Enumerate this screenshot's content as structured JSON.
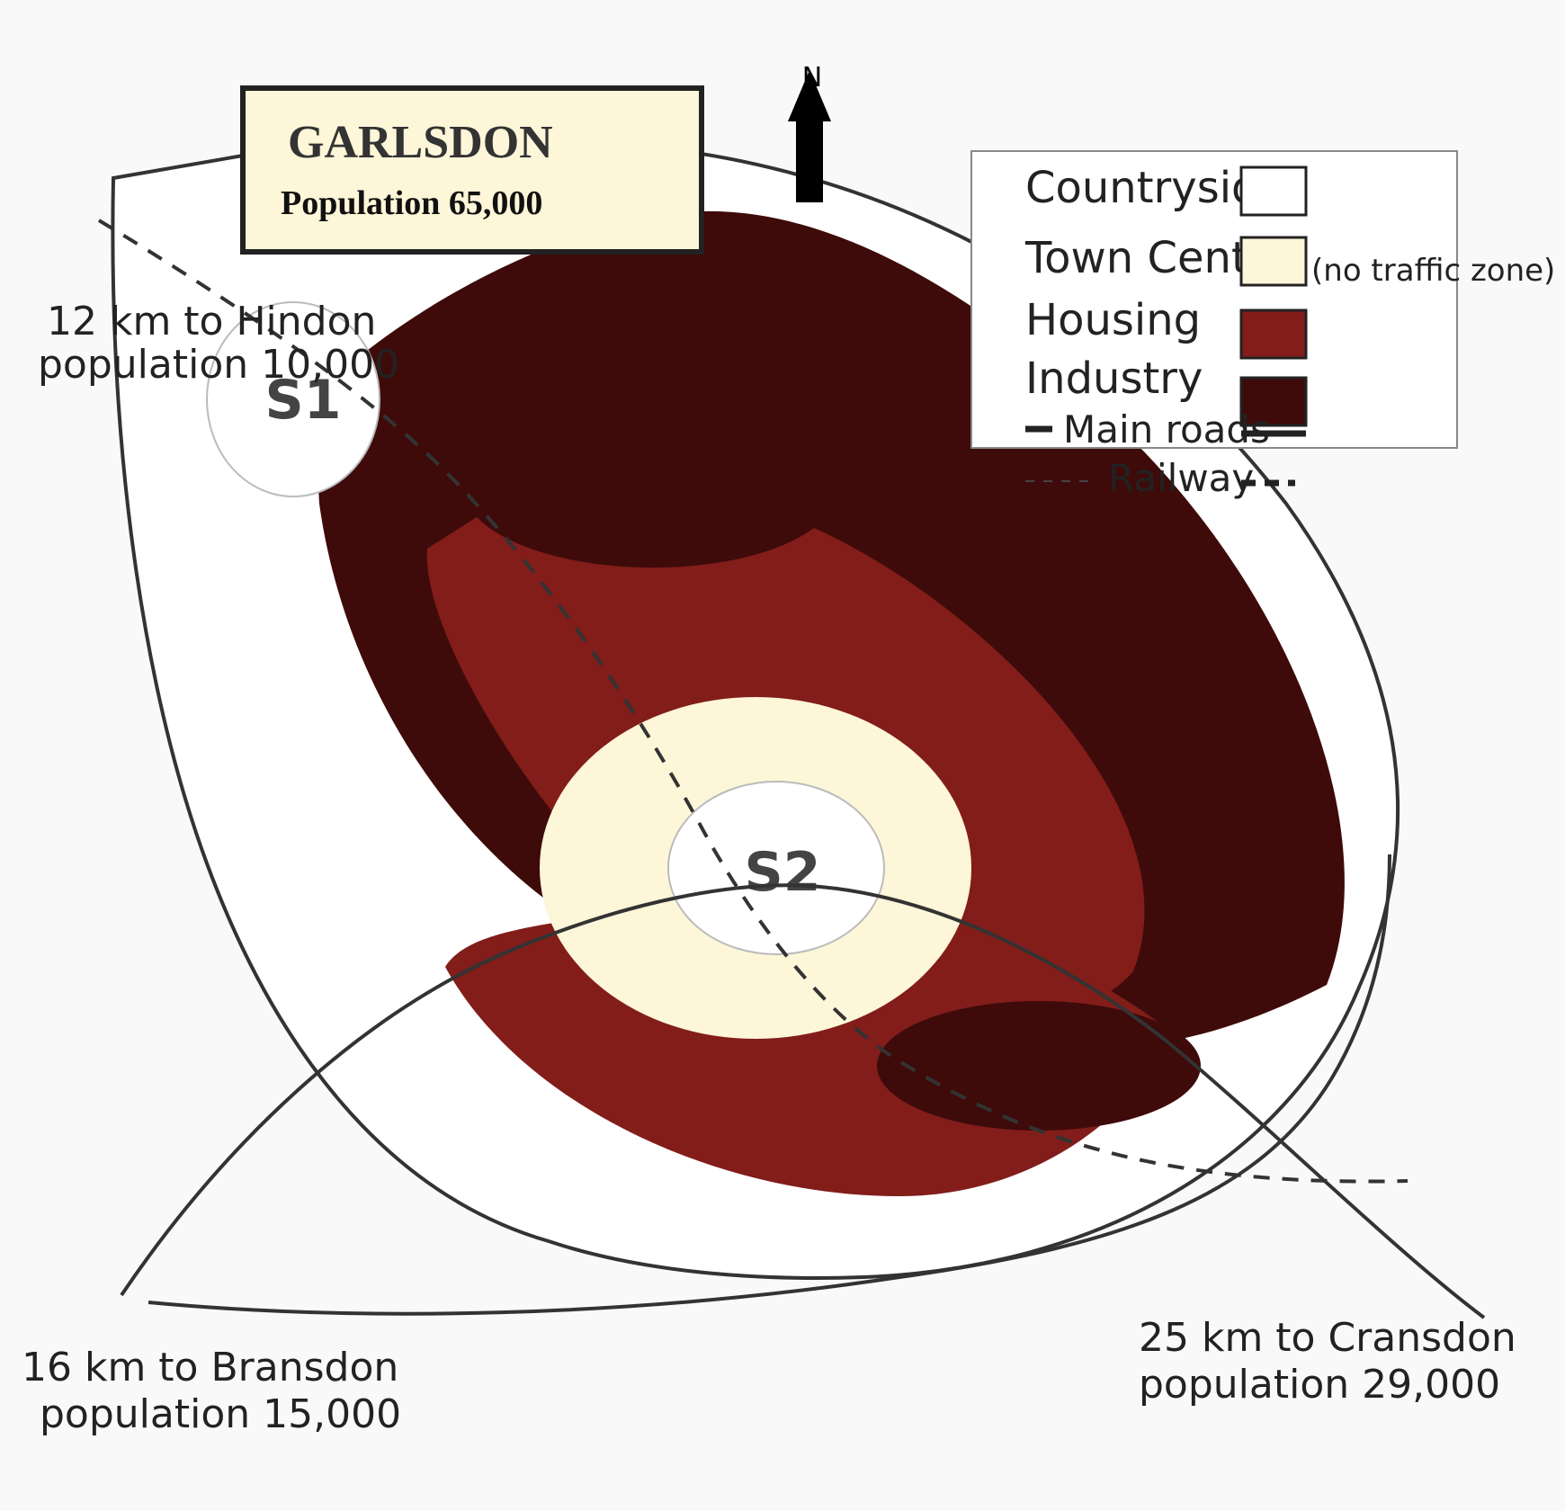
{
  "title": {
    "name": "GARLSDON",
    "population": "Population 65,000"
  },
  "compass": {
    "label": "N"
  },
  "legend": {
    "countryside": "Countryside",
    "town_centre": "Town Centre",
    "town_centre_note": "(no traffic zone)",
    "housing": "Housing",
    "industry": "Industry",
    "main_roads": "Main roads",
    "railway": "Railway"
  },
  "sites": {
    "s1": "S1",
    "s2": "S2"
  },
  "destinations": {
    "hindon": {
      "line1": "12 km to Hindon",
      "line2": "population 10,000"
    },
    "bransdon": {
      "line1": "16 km to Bransdon",
      "line2": "population 15,000"
    },
    "cransdon": {
      "line1": "25 km to Cransdon",
      "line2": "population 29,000"
    }
  },
  "colors": {
    "background": "#f9f9f9",
    "countryside": "#ffffff",
    "town_centre": "#fdf6d8",
    "housing": "#821d1a",
    "industry": "#3e0b0a",
    "outline": "#333333"
  }
}
